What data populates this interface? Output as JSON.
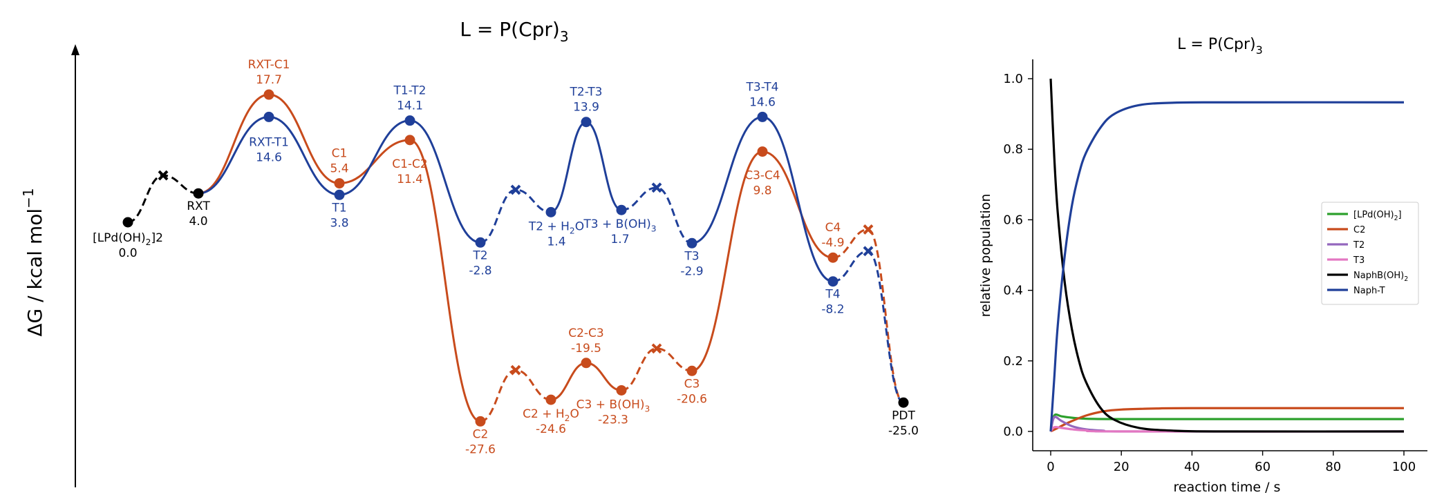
{
  "colors": {
    "orange": "#c84b1c",
    "blue": "#1f3f99",
    "black": "#000000",
    "green": "#2ca02c",
    "purple": "#9467bd",
    "pink": "#e377c2"
  },
  "chart_data": [
    {
      "type": "line",
      "subtype": "energy-profile",
      "title": "L = P(Cpr)3",
      "ylabel": "ΔG / kcal mol-1",
      "xlabel": "",
      "ylim": [
        -35,
        25
      ],
      "xlim": [
        -0.2,
        22.6
      ],
      "grid": false,
      "legend": "none",
      "points": [
        {
          "id": "lpd",
          "x": 0,
          "y": 0.0,
          "path": "shared",
          "kind": "minimum",
          "name": "[LPd(OH)2]2",
          "value": "0.0"
        },
        {
          "id": "ts0",
          "x": 1,
          "y": 6.5,
          "path": "shared",
          "kind": "cross"
        },
        {
          "id": "rxt",
          "x": 2,
          "y": 4.0,
          "path": "shared",
          "kind": "minimum",
          "name": "RXT",
          "value": "4.0"
        },
        {
          "id": "rxtc1",
          "x": 4,
          "y": 17.7,
          "path": "orange",
          "kind": "ts",
          "name": "RXT-C1",
          "value": "17.7"
        },
        {
          "id": "rxtt1",
          "x": 4,
          "y": 14.6,
          "path": "blue",
          "kind": "ts",
          "name": "RXT-T1",
          "value": "14.6"
        },
        {
          "id": "c1",
          "x": 6,
          "y": 5.4,
          "path": "orange",
          "kind": "minimum",
          "name": "C1",
          "value": "5.4"
        },
        {
          "id": "t1",
          "x": 6,
          "y": 3.8,
          "path": "blue",
          "kind": "minimum",
          "name": "T1",
          "value": "3.8"
        },
        {
          "id": "t1t2",
          "x": 8,
          "y": 14.1,
          "path": "blue",
          "kind": "ts",
          "name": "T1-T2",
          "value": "14.1"
        },
        {
          "id": "c1c2",
          "x": 8,
          "y": 11.4,
          "path": "orange",
          "kind": "ts",
          "name": "C1-C2",
          "value": "11.4"
        },
        {
          "id": "t2",
          "x": 10,
          "y": -2.8,
          "path": "blue",
          "kind": "minimum",
          "name": "T2",
          "value": "-2.8"
        },
        {
          "id": "c2",
          "x": 10,
          "y": -27.6,
          "path": "orange",
          "kind": "minimum",
          "name": "C2",
          "value": "-27.6"
        },
        {
          "id": "xb1",
          "x": 11,
          "y": 4.5,
          "path": "blue",
          "kind": "cross"
        },
        {
          "id": "xo1",
          "x": 11,
          "y": -20.5,
          "path": "orange",
          "kind": "cross"
        },
        {
          "id": "t2h",
          "x": 12,
          "y": 1.4,
          "path": "blue",
          "kind": "minimum",
          "name": "T2 + H2O",
          "value": "1.4"
        },
        {
          "id": "c2h",
          "x": 12,
          "y": -24.6,
          "path": "orange",
          "kind": "minimum",
          "name": "C2 + H2O",
          "value": "-24.6"
        },
        {
          "id": "t2t3",
          "x": 13,
          "y": 13.9,
          "path": "blue",
          "kind": "ts",
          "name": "T2-T3",
          "value": "13.9"
        },
        {
          "id": "c2c3",
          "x": 13,
          "y": -19.5,
          "path": "orange",
          "kind": "ts",
          "name": "C2-C3",
          "value": "-19.5"
        },
        {
          "id": "t3b",
          "x": 14,
          "y": 1.7,
          "path": "blue",
          "kind": "minimum",
          "name": "T3 + B(OH)3",
          "value": "1.7"
        },
        {
          "id": "c3b",
          "x": 14,
          "y": -23.3,
          "path": "orange",
          "kind": "minimum",
          "name": "C3 + B(OH)3",
          "value": "-23.3"
        },
        {
          "id": "xb2",
          "x": 15,
          "y": 4.8,
          "path": "blue",
          "kind": "cross"
        },
        {
          "id": "xo2",
          "x": 15,
          "y": -17.5,
          "path": "orange",
          "kind": "cross"
        },
        {
          "id": "t3",
          "x": 16,
          "y": -2.9,
          "path": "blue",
          "kind": "minimum",
          "name": "T3",
          "value": "-2.9"
        },
        {
          "id": "c3",
          "x": 16,
          "y": -20.6,
          "path": "orange",
          "kind": "minimum",
          "name": "C3",
          "value": "-20.6"
        },
        {
          "id": "t3t4",
          "x": 18,
          "y": 14.6,
          "path": "blue",
          "kind": "ts",
          "name": "T3-T4",
          "value": "14.6"
        },
        {
          "id": "c3c4",
          "x": 18,
          "y": 9.8,
          "path": "orange",
          "kind": "ts",
          "name": "C3-C4",
          "value": "9.8"
        },
        {
          "id": "c4",
          "x": 20,
          "y": -4.9,
          "path": "orange",
          "kind": "minimum",
          "name": "C4",
          "value": "-4.9"
        },
        {
          "id": "t4",
          "x": 20,
          "y": -8.2,
          "path": "blue",
          "kind": "minimum",
          "name": "T4",
          "value": "-8.2"
        },
        {
          "id": "xo3",
          "x": 21,
          "y": -1.0,
          "path": "orange",
          "kind": "cross"
        },
        {
          "id": "xb3",
          "x": 21,
          "y": -4.0,
          "path": "blue",
          "kind": "cross"
        },
        {
          "id": "pdt",
          "x": 22,
          "y": -25.0,
          "path": "shared",
          "kind": "minimum",
          "name": "PDT",
          "value": "-25.0"
        }
      ],
      "segments": [
        {
          "from": "lpd",
          "via": "ts0",
          "to": "rxt",
          "color": "black",
          "style": "dashed"
        },
        {
          "from": "rxt",
          "via": "rxtc1",
          "to": "c1",
          "color": "orange",
          "style": "solid"
        },
        {
          "from": "c1",
          "via": "c1c2",
          "to": "c2",
          "color": "orange",
          "style": "solid"
        },
        {
          "from": "c2",
          "via": "xo1",
          "to": "c2h",
          "color": "orange",
          "style": "dashed"
        },
        {
          "from": "c2h",
          "via": "c2c3",
          "to": "c3b",
          "color": "orange",
          "style": "solid"
        },
        {
          "from": "c3b",
          "via": "xo2",
          "to": "c3",
          "color": "orange",
          "style": "dashed"
        },
        {
          "from": "c3",
          "via": "c3c4",
          "to": "c4",
          "color": "orange",
          "style": "solid"
        },
        {
          "from": "c4",
          "via": "xo3",
          "to": "pdt",
          "color": "orange",
          "style": "dashed"
        },
        {
          "from": "rxt",
          "via": "rxtt1",
          "to": "t1",
          "color": "blue",
          "style": "solid"
        },
        {
          "from": "t1",
          "via": "t1t2",
          "to": "t2",
          "color": "blue",
          "style": "solid"
        },
        {
          "from": "t2",
          "via": "xb1",
          "to": "t2h",
          "color": "blue",
          "style": "dashed"
        },
        {
          "from": "t2h",
          "via": "t2t3",
          "to": "t3b",
          "color": "blue",
          "style": "solid"
        },
        {
          "from": "t3b",
          "via": "xb2",
          "to": "t3",
          "color": "blue",
          "style": "dashed"
        },
        {
          "from": "t3",
          "via": "t3t4",
          "to": "t4",
          "color": "blue",
          "style": "solid"
        },
        {
          "from": "t4",
          "via": "xb3",
          "to": "pdt",
          "color": "blue",
          "style": "dashed"
        }
      ]
    },
    {
      "type": "line",
      "title": "L = P(Cpr)3",
      "xlabel": "reaction time / s",
      "ylabel": "relative population",
      "xlim": [
        -4,
        104
      ],
      "ylim": [
        -0.05,
        1.05
      ],
      "xticks": [
        0,
        20,
        40,
        60,
        80,
        100
      ],
      "yticks": [
        0.0,
        0.2,
        0.4,
        0.6,
        0.8,
        1.0
      ],
      "tick_labels_x": [
        "0",
        "20",
        "40",
        "60",
        "80",
        "100"
      ],
      "tick_labels_y": [
        "0.0",
        "0.2",
        "0.4",
        "0.6",
        "0.8",
        "1.0"
      ],
      "grid": false,
      "legend": "center-right",
      "series": [
        {
          "name": "[LPd(OH)2]",
          "color": "green",
          "x": [
            0,
            1,
            3,
            5,
            10,
            20,
            40,
            100
          ],
          "y": [
            0.0,
            0.045,
            0.043,
            0.04,
            0.036,
            0.035,
            0.035,
            0.035
          ]
        },
        {
          "name": "C2",
          "color": "orange",
          "x": [
            0,
            2,
            5,
            10,
            15,
            20,
            30,
            40,
            100
          ],
          "y": [
            0.0,
            0.01,
            0.025,
            0.045,
            0.057,
            0.062,
            0.065,
            0.066,
            0.066
          ]
        },
        {
          "name": "T2",
          "color": "purple",
          "x": [
            0,
            1,
            3,
            6,
            10,
            15,
            20,
            100
          ],
          "y": [
            0.0,
            0.04,
            0.03,
            0.015,
            0.006,
            0.002,
            0.0,
            0.0
          ]
        },
        {
          "name": "T3",
          "color": "pink",
          "x": [
            0,
            1,
            3,
            6,
            10,
            20,
            100
          ],
          "y": [
            0.0,
            0.012,
            0.01,
            0.006,
            0.003,
            0.0,
            0.0
          ]
        },
        {
          "name": "NaphB(OH)2",
          "color": "black",
          "x": [
            0,
            1,
            2,
            4,
            6,
            8,
            10,
            14,
            18,
            25,
            35,
            50,
            100
          ],
          "y": [
            1.0,
            0.78,
            0.62,
            0.42,
            0.29,
            0.2,
            0.14,
            0.068,
            0.033,
            0.01,
            0.002,
            0.0,
            0.0
          ]
        },
        {
          "name": "Naph-T",
          "color": "blue",
          "x": [
            0,
            1,
            2,
            4,
            6,
            8,
            10,
            14,
            18,
            25,
            35,
            50,
            100
          ],
          "y": [
            0.0,
            0.15,
            0.3,
            0.5,
            0.64,
            0.73,
            0.79,
            0.86,
            0.9,
            0.925,
            0.932,
            0.933,
            0.933
          ]
        }
      ]
    }
  ]
}
